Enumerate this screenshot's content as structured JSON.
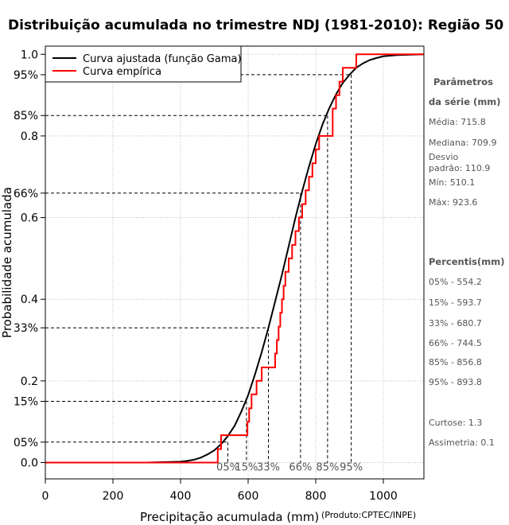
{
  "chart_data": {
    "type": "line",
    "title": "Distribuição acumulada no trimestre NDJ (1981-2010): Região 50",
    "xlabel": "Precipitação acumulada (mm)",
    "ylabel": "Probabilidade acumulada",
    "credit": "(Produto:CPTEC/INPE)",
    "xlim": [
      0,
      1120
    ],
    "ylim": [
      -0.04,
      1.02
    ],
    "x_ticks": [
      0,
      200,
      400,
      600,
      800,
      1000
    ],
    "y_ticks": [
      {
        "value": 0.0,
        "label": "0.0"
      },
      {
        "value": 0.05,
        "label": "05%"
      },
      {
        "value": 0.15,
        "label": "15%"
      },
      {
        "value": 0.2,
        "label": "0.2"
      },
      {
        "value": 0.33,
        "label": "33%"
      },
      {
        "value": 0.4,
        "label": "0.4"
      },
      {
        "value": 0.6,
        "label": "0.6"
      },
      {
        "value": 0.66,
        "label": "66%"
      },
      {
        "value": 0.8,
        "label": "0.8"
      },
      {
        "value": 0.85,
        "label": "85%"
      },
      {
        "value": 0.95,
        "label": "95%"
      },
      {
        "value": 1.0,
        "label": "1.0"
      }
    ],
    "grid_x": [
      0,
      200,
      400,
      600,
      800,
      1000
    ],
    "grid_y": [
      0.0,
      0.2,
      0.4,
      0.6,
      0.8,
      1.0
    ],
    "legend": {
      "position": "top-left",
      "entries": [
        {
          "label": "Curva ajustada (função Gama)",
          "color": "#000000"
        },
        {
          "label": "Curva empírica",
          "color": "#ff0000"
        }
      ]
    },
    "series": [
      {
        "name": "Curva ajustada (função Gama)",
        "color": "#000000",
        "x": [
          0,
          100,
          200,
          300,
          400,
          420,
          440,
          460,
          480,
          500,
          520,
          540,
          560,
          580,
          600,
          620,
          640,
          660,
          680,
          700,
          720,
          740,
          760,
          780,
          800,
          820,
          840,
          860,
          880,
          900,
          920,
          940,
          960,
          980,
          1000,
          1040,
          1080,
          1120
        ],
        "y": [
          0.0,
          0.0,
          0.0,
          0.0,
          0.002,
          0.004,
          0.007,
          0.012,
          0.02,
          0.03,
          0.045,
          0.065,
          0.09,
          0.125,
          0.165,
          0.215,
          0.27,
          0.33,
          0.395,
          0.46,
          0.53,
          0.6,
          0.665,
          0.725,
          0.78,
          0.828,
          0.868,
          0.902,
          0.93,
          0.95,
          0.967,
          0.978,
          0.986,
          0.991,
          0.995,
          0.998,
          0.999,
          1.0
        ]
      },
      {
        "name": "Curva empírica",
        "color": "#ff0000",
        "type": "step",
        "x": [
          0,
          510,
          510,
          520,
          520,
          598,
          598,
          603,
          603,
          610,
          610,
          625,
          625,
          640,
          640,
          680,
          680,
          685,
          685,
          690,
          690,
          695,
          695,
          700,
          700,
          705,
          705,
          710,
          710,
          720,
          720,
          730,
          730,
          740,
          740,
          750,
          750,
          760,
          760,
          770,
          770,
          780,
          780,
          790,
          790,
          800,
          800,
          810,
          810,
          850,
          850,
          860,
          860,
          870,
          870,
          880,
          880,
          890,
          890,
          920,
          920,
          1120
        ],
        "y": [
          0.0,
          0.0,
          0.033,
          0.033,
          0.067,
          0.067,
          0.1,
          0.1,
          0.133,
          0.133,
          0.167,
          0.167,
          0.2,
          0.2,
          0.233,
          0.233,
          0.267,
          0.267,
          0.3,
          0.3,
          0.333,
          0.333,
          0.367,
          0.367,
          0.4,
          0.4,
          0.433,
          0.433,
          0.467,
          0.467,
          0.5,
          0.5,
          0.533,
          0.533,
          0.567,
          0.567,
          0.6,
          0.6,
          0.633,
          0.633,
          0.667,
          0.667,
          0.7,
          0.7,
          0.733,
          0.733,
          0.767,
          0.767,
          0.8,
          0.8,
          0.867,
          0.867,
          0.9,
          0.9,
          0.933,
          0.933,
          0.967,
          0.967,
          0.967,
          0.967,
          1.0,
          1.0
        ]
      }
    ],
    "percentile_markers": [
      {
        "label": "05%",
        "x": 540,
        "p": 0.05
      },
      {
        "label": "15%",
        "x": 595,
        "p": 0.15
      },
      {
        "label": "33%",
        "x": 660,
        "p": 0.33
      },
      {
        "label": "66%",
        "x": 755,
        "p": 0.66
      },
      {
        "label": "85%",
        "x": 835,
        "p": 0.85
      },
      {
        "label": "95%",
        "x": 905,
        "p": 0.95
      }
    ],
    "stats_panel": {
      "params_heading_1": "Parâmetros",
      "params_heading_2": "da série (mm)",
      "media": "Média: 715.8",
      "mediana": "Mediana: 709.9",
      "desvio_1": "Desvio",
      "desvio_2": "padrão: 110.9",
      "min": "Mín: 510.1",
      "max": "Máx: 923.6",
      "percentis_heading": "Percentis(mm)",
      "percentis": [
        "05% - 554.2",
        "15% - 593.7",
        "33% - 680.7",
        "66% - 744.5",
        "85% - 856.8",
        "95% - 893.8"
      ],
      "curtose": "Curtose: 1.3",
      "assimetria": "Assimetria: 0.1"
    }
  }
}
